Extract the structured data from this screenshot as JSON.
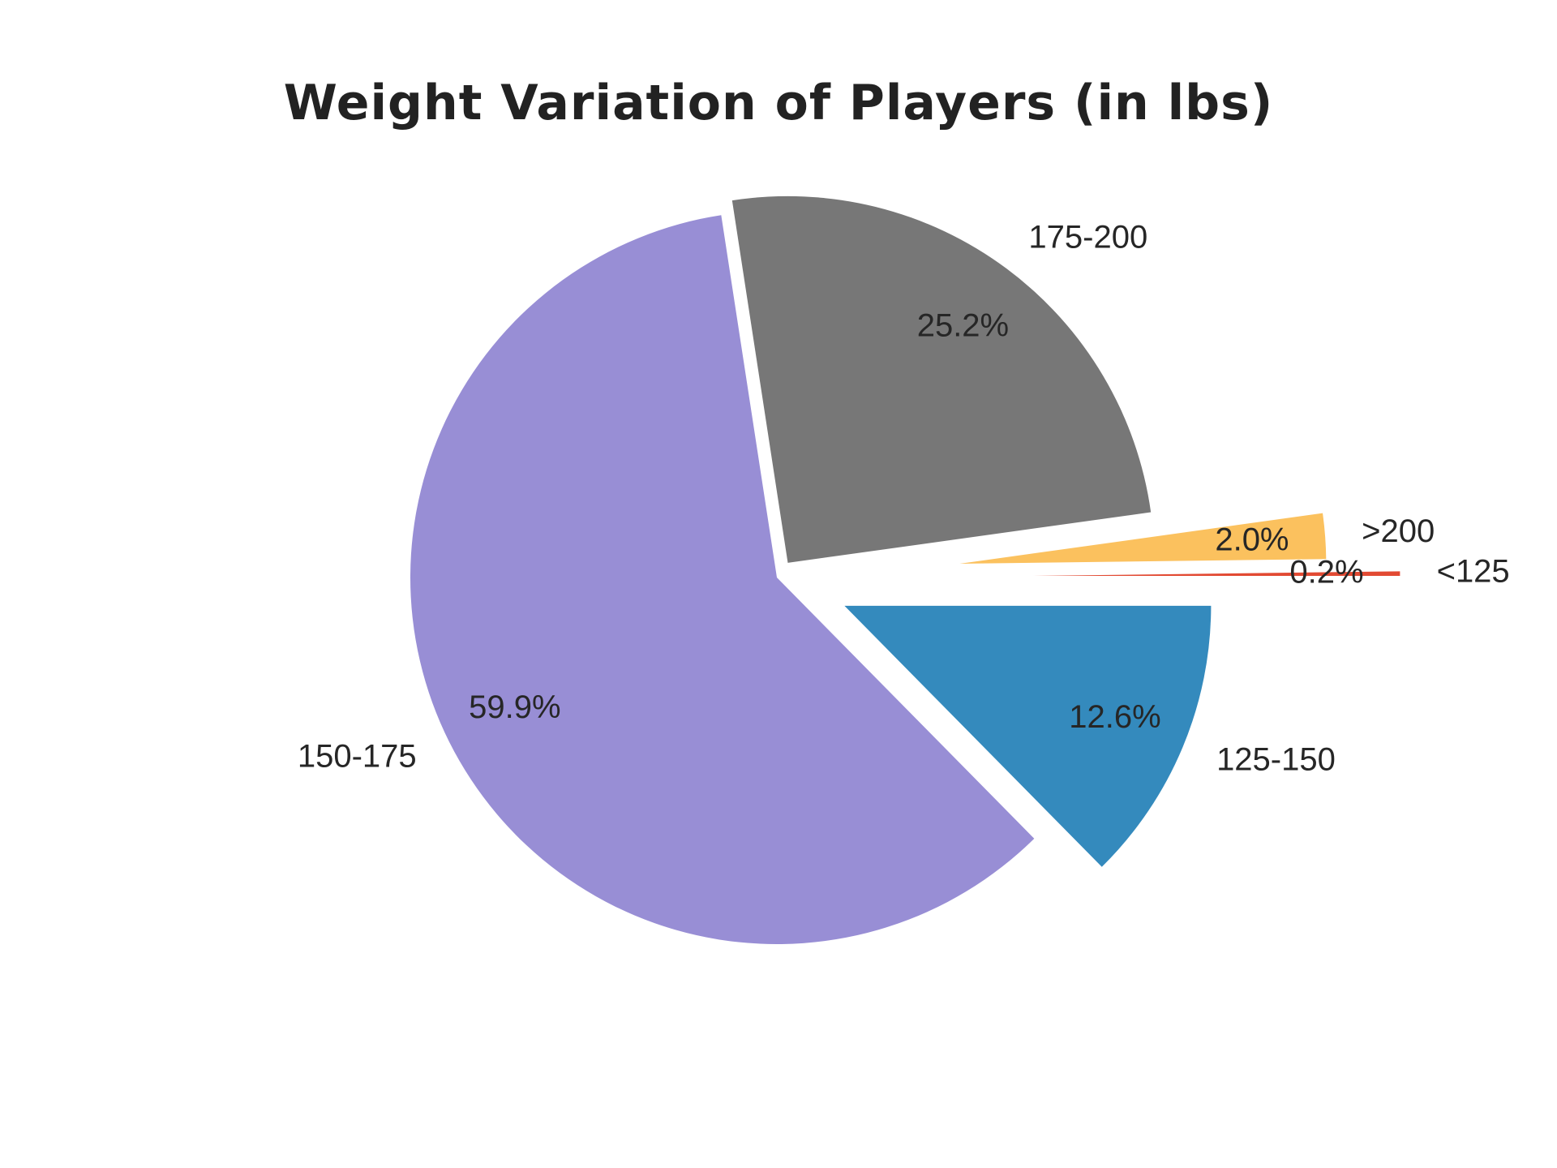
{
  "chart_data": {
    "type": "pie",
    "title": "Weight Variation of Players (in lbs)",
    "slices": [
      {
        "label": "<125",
        "value": 0.2,
        "pct_label": "0.2%",
        "color": "#e24a33",
        "explode": 0.7
      },
      {
        "label": ">200",
        "value": 2.0,
        "pct_label": "2.0%",
        "color": "#fbc15e",
        "explode": 0.5
      },
      {
        "label": "175-200",
        "value": 25.2,
        "pct_label": "25.2%",
        "color": "#777777",
        "explode": 0.05
      },
      {
        "label": "150-175",
        "value": 59.9,
        "pct_label": "59.9%",
        "color": "#988ed5",
        "explode": 0.0
      },
      {
        "label": "125-150",
        "value": 12.6,
        "pct_label": "12.6%",
        "color": "#348abd",
        "explode": 0.2
      }
    ],
    "legend": "none"
  }
}
